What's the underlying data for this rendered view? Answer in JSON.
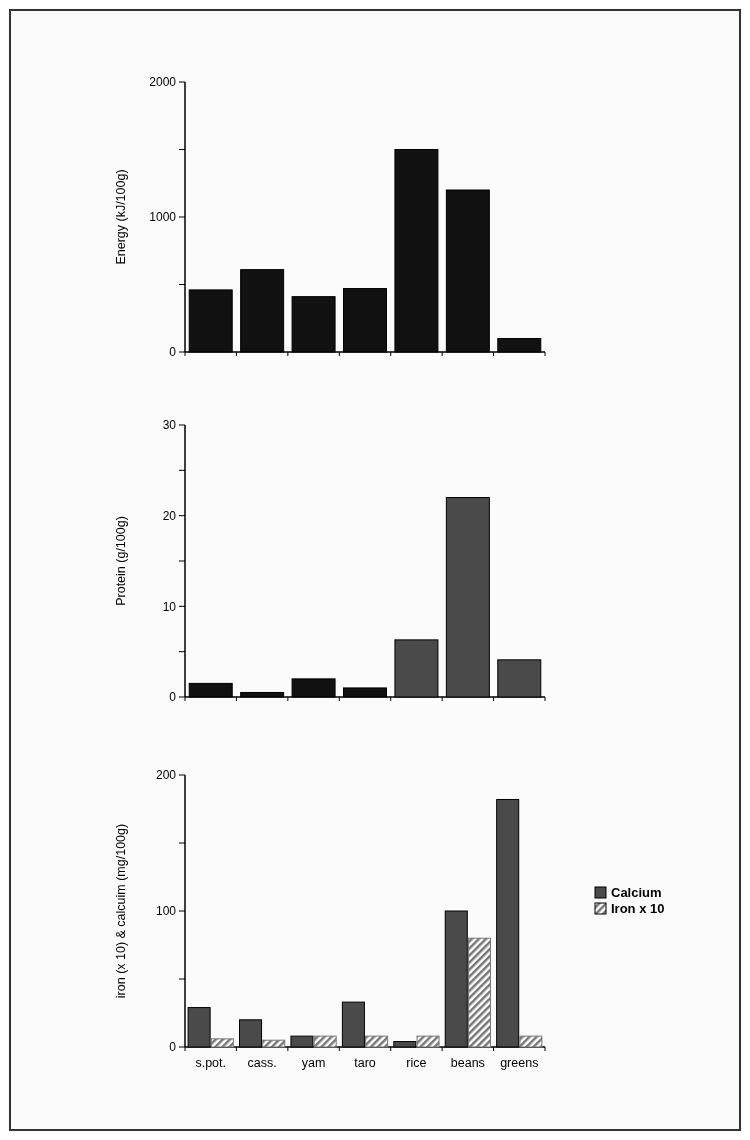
{
  "chart_data": [
    {
      "type": "bar",
      "ylabel": "Energy (kJ/100g)",
      "categories": [
        null,
        null,
        null,
        null,
        null,
        null,
        null
      ],
      "values": [
        460,
        610,
        410,
        470,
        1500,
        1200,
        100
      ],
      "colors": [
        "#111111",
        "#111111",
        "#111111",
        "#111111",
        "#111111",
        "#111111",
        "#111111"
      ],
      "ylim": [
        0,
        2000
      ],
      "yticks": [
        0,
        {
          "value": 500,
          "label": null
        },
        1000,
        {
          "value": 1500,
          "label": null
        },
        2000
      ],
      "tick_labels": "y",
      "grid": false,
      "legend": false
    },
    {
      "type": "bar",
      "ylabel": "Protein (g/100g)",
      "categories": [
        null,
        null,
        null,
        null,
        null,
        null,
        null
      ],
      "values": [
        1.5,
        0.5,
        2,
        1,
        6.3,
        22,
        4.1
      ],
      "colors": [
        "#111111",
        "#111111",
        "#111111",
        "#111111",
        "#4a4a4a",
        "#4a4a4a",
        "#4a4a4a"
      ],
      "ylim": [
        0,
        30
      ],
      "yticks": [
        0,
        {
          "value": 5,
          "label": null
        },
        10,
        {
          "value": 15,
          "label": null
        },
        20,
        {
          "value": 25,
          "label": null
        },
        30
      ],
      "tick_labels": "y",
      "grid": false,
      "legend": false
    },
    {
      "type": "bar",
      "ylabel": "iron (x 10) & calcuim (mg/100g)",
      "categories": [
        "s.pot.",
        "cass.",
        "yam",
        "taro",
        "rice",
        "beans",
        "greens"
      ],
      "series": [
        {
          "name": "Calcium",
          "color": "#4a4a4a",
          "values": [
            29,
            20,
            8,
            33,
            4,
            100,
            182
          ]
        },
        {
          "name": "Iron x 10",
          "color": "#777777",
          "values": [
            6,
            5,
            8,
            8,
            8,
            80,
            8
          ]
        }
      ],
      "ylim": [
        0,
        200
      ],
      "yticks": [
        0,
        {
          "value": 50,
          "label": null
        },
        100,
        {
          "value": 150,
          "label": null
        },
        200
      ],
      "grid": false,
      "legend": "right"
    }
  ]
}
